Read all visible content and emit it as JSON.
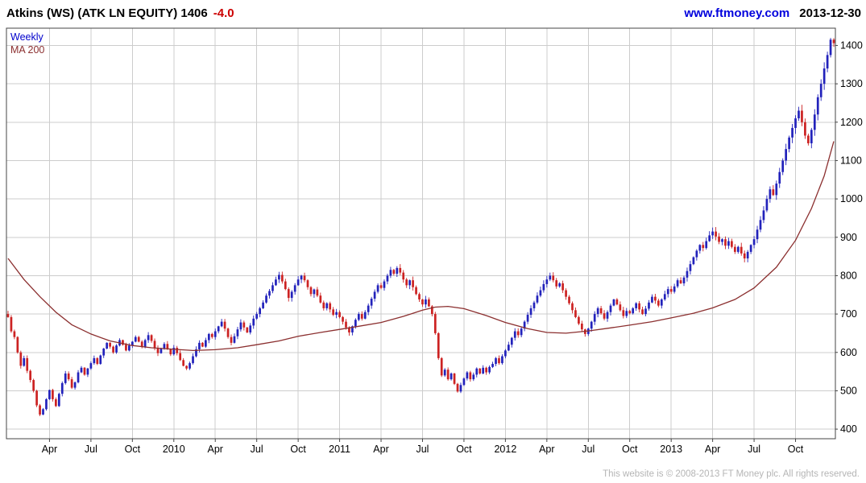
{
  "header": {
    "title": "Atkins (WS) (ATK LN EQUITY) 1406",
    "change": "-4.0",
    "website": "www.ftmoney.com",
    "date": "2013-12-30"
  },
  "legend": {
    "weekly": "Weekly",
    "ma200": "MA 200"
  },
  "footer": {
    "text": "This website is © 2008-2013 FT Money plc. All rights reserved."
  },
  "chart_data": {
    "type": "candlestick",
    "title": "Atkins (WS) (ATK LN EQUITY)",
    "interval": "Weekly",
    "overlay": "MA 200",
    "last_price": 1406,
    "change": -4.0,
    "ylim": [
      375,
      1445
    ],
    "y_ticks": [
      400,
      500,
      600,
      700,
      800,
      900,
      1000,
      1100,
      1200,
      1300,
      1400
    ],
    "x_ticks": [
      [
        13,
        "Apr"
      ],
      [
        26,
        "Jul"
      ],
      [
        39,
        "Oct"
      ],
      [
        52,
        "2010"
      ],
      [
        65,
        "Apr"
      ],
      [
        78,
        "Jul"
      ],
      [
        91,
        "Oct"
      ],
      [
        104,
        "2011"
      ],
      [
        117,
        "Apr"
      ],
      [
        130,
        "Jul"
      ],
      [
        143,
        "Oct"
      ],
      [
        156,
        "2012"
      ],
      [
        169,
        "Apr"
      ],
      [
        182,
        "Jul"
      ],
      [
        195,
        "Oct"
      ],
      [
        208,
        "2013"
      ],
      [
        221,
        "Apr"
      ],
      [
        234,
        "Jul"
      ],
      [
        247,
        "Oct"
      ]
    ],
    "weekly_closes": [
      692,
      655,
      640,
      600,
      565,
      585,
      552,
      528,
      500,
      462,
      438,
      452,
      478,
      502,
      478,
      460,
      492,
      520,
      545,
      530,
      508,
      522,
      548,
      560,
      542,
      558,
      572,
      585,
      570,
      592,
      610,
      625,
      615,
      600,
      618,
      632,
      620,
      605,
      618,
      628,
      640,
      628,
      615,
      632,
      645,
      630,
      612,
      598,
      610,
      622,
      608,
      595,
      612,
      598,
      580,
      565,
      558,
      572,
      590,
      608,
      625,
      615,
      632,
      648,
      640,
      655,
      668,
      680,
      662,
      640,
      625,
      642,
      660,
      678,
      665,
      652,
      670,
      688,
      700,
      715,
      730,
      748,
      760,
      775,
      790,
      802,
      785,
      765,
      742,
      758,
      775,
      790,
      800,
      788,
      770,
      752,
      764,
      748,
      730,
      715,
      728,
      712,
      698,
      705,
      692,
      680,
      665,
      652,
      668,
      685,
      700,
      688,
      705,
      722,
      740,
      758,
      775,
      768,
      785,
      800,
      815,
      805,
      820,
      808,
      790,
      775,
      788,
      770,
      752,
      738,
      725,
      738,
      720,
      700,
      650,
      585,
      540,
      555,
      530,
      545,
      518,
      498,
      515,
      532,
      548,
      530,
      542,
      558,
      545,
      560,
      548,
      562,
      570,
      585,
      572,
      590,
      605,
      620,
      638,
      655,
      645,
      662,
      680,
      698,
      715,
      730,
      748,
      762,
      778,
      790,
      800,
      788,
      772,
      780,
      762,
      745,
      728,
      710,
      692,
      675,
      660,
      648,
      662,
      680,
      700,
      715,
      702,
      688,
      705,
      722,
      738,
      725,
      710,
      695,
      708,
      702,
      715,
      728,
      712,
      700,
      714,
      730,
      745,
      735,
      722,
      738,
      752,
      765,
      758,
      772,
      788,
      780,
      795,
      812,
      830,
      848,
      865,
      880,
      872,
      890,
      905,
      915,
      902,
      888,
      895,
      878,
      890,
      875,
      862,
      875,
      858,
      845,
      862,
      880,
      895,
      920,
      945,
      970,
      1000,
      1025,
      1010,
      1040,
      1070,
      1100,
      1130,
      1160,
      1185,
      1210,
      1230,
      1200,
      1165,
      1145,
      1180,
      1220,
      1265,
      1300,
      1340,
      1375,
      1415,
      1406
    ],
    "ma200_points": [
      [
        0,
        845
      ],
      [
        5,
        790
      ],
      [
        10,
        745
      ],
      [
        15,
        705
      ],
      [
        20,
        672
      ],
      [
        26,
        648
      ],
      [
        32,
        630
      ],
      [
        39,
        618
      ],
      [
        45,
        612
      ],
      [
        52,
        608
      ],
      [
        58,
        605
      ],
      [
        65,
        607
      ],
      [
        72,
        612
      ],
      [
        78,
        620
      ],
      [
        85,
        630
      ],
      [
        91,
        642
      ],
      [
        98,
        652
      ],
      [
        104,
        660
      ],
      [
        110,
        668
      ],
      [
        117,
        678
      ],
      [
        124,
        694
      ],
      [
        130,
        710
      ],
      [
        134,
        718
      ],
      [
        138,
        720
      ],
      [
        143,
        714
      ],
      [
        150,
        696
      ],
      [
        156,
        678
      ],
      [
        163,
        662
      ],
      [
        169,
        652
      ],
      [
        175,
        650
      ],
      [
        182,
        656
      ],
      [
        189,
        664
      ],
      [
        195,
        671
      ],
      [
        202,
        680
      ],
      [
        208,
        690
      ],
      [
        215,
        702
      ],
      [
        221,
        716
      ],
      [
        228,
        738
      ],
      [
        234,
        768
      ],
      [
        241,
        822
      ],
      [
        247,
        892
      ],
      [
        252,
        975
      ],
      [
        256,
        1060
      ],
      [
        259,
        1150
      ]
    ],
    "colors": {
      "up": "#2222bb",
      "down": "#cc2222",
      "ma": "#8b2f2f",
      "grid": "#cccccc",
      "frame": "#444444",
      "text": "#000000"
    }
  }
}
